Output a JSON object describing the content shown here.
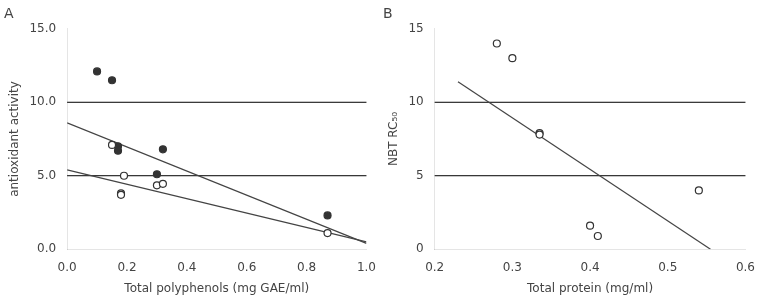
{
  "chart_data": [
    {
      "type": "scatter",
      "title": "A",
      "xlabel": "Total polyphenols (mg GAE/ml)",
      "ylabel": "antioxidant activity",
      "xlim": [
        0,
        1
      ],
      "ylim": [
        0.0,
        15.0
      ],
      "xticks": [
        {
          "value": 0.0,
          "label": "0.0"
        },
        0.2,
        0.4,
        0.6,
        0.8,
        {
          "value": 1.0,
          "label": "1.0"
        }
      ],
      "yticks": [
        {
          "value": 0.0,
          "label": "0.0"
        },
        {
          "value": 5.0,
          "label": "5.0"
        },
        {
          "value": 10.0,
          "label": "10.0"
        },
        {
          "value": 15.0,
          "label": "15.0"
        }
      ],
      "grid": false,
      "series": [
        {
          "type": "hline",
          "color": "#000000",
          "values": [
            5.0,
            10.0
          ]
        },
        {
          "type": "line",
          "color": "#444444",
          "x": [
            0.0,
            1.0
          ],
          "values": [
            8.6,
            0.4
          ]
        },
        {
          "type": "line",
          "color": "#444444",
          "x": [
            0.0,
            1.0
          ],
          "values": [
            5.4,
            0.5
          ]
        },
        {
          "type": "scatter",
          "marker": "circle",
          "color": "#333333",
          "x": [
            0.1,
            0.15,
            0.17,
            0.17,
            0.3,
            0.32,
            0.87
          ],
          "values": [
            12.1,
            11.5,
            7.0,
            6.7,
            5.1,
            6.8,
            2.3
          ]
        },
        {
          "type": "scatter",
          "marker": "circle-open",
          "color": "#333333",
          "x": [
            0.15,
            0.18,
            0.18,
            0.19,
            0.3,
            0.32,
            0.87
          ],
          "values": [
            7.1,
            3.8,
            3.7,
            5.0,
            4.35,
            4.45,
            1.1
          ]
        }
      ]
    },
    {
      "type": "scatter",
      "title": "B",
      "xlabel": "Total protein (mg/ml)",
      "ylabel": "NBT RC₅₀",
      "xlim": [
        0.2,
        0.6
      ],
      "ylim": [
        0,
        15
      ],
      "xticks": [
        0.2,
        0.3,
        0.4,
        0.5,
        0.6
      ],
      "yticks": [
        0,
        5,
        10,
        15
      ],
      "grid": false,
      "series": [
        {
          "type": "hline",
          "color": "#000000",
          "values": [
            5,
            10
          ]
        },
        {
          "type": "line",
          "color": "#444444",
          "x": [
            0.23,
            0.555
          ],
          "values": [
            11.4,
            0.0
          ]
        },
        {
          "type": "scatter",
          "marker": "circle-open",
          "color": "#333333",
          "x": [
            0.28,
            0.3,
            0.335,
            0.335,
            0.4,
            0.41,
            0.54
          ],
          "values": [
            14.0,
            13.0,
            7.9,
            7.8,
            1.6,
            0.9,
            4.0
          ]
        }
      ]
    }
  ]
}
